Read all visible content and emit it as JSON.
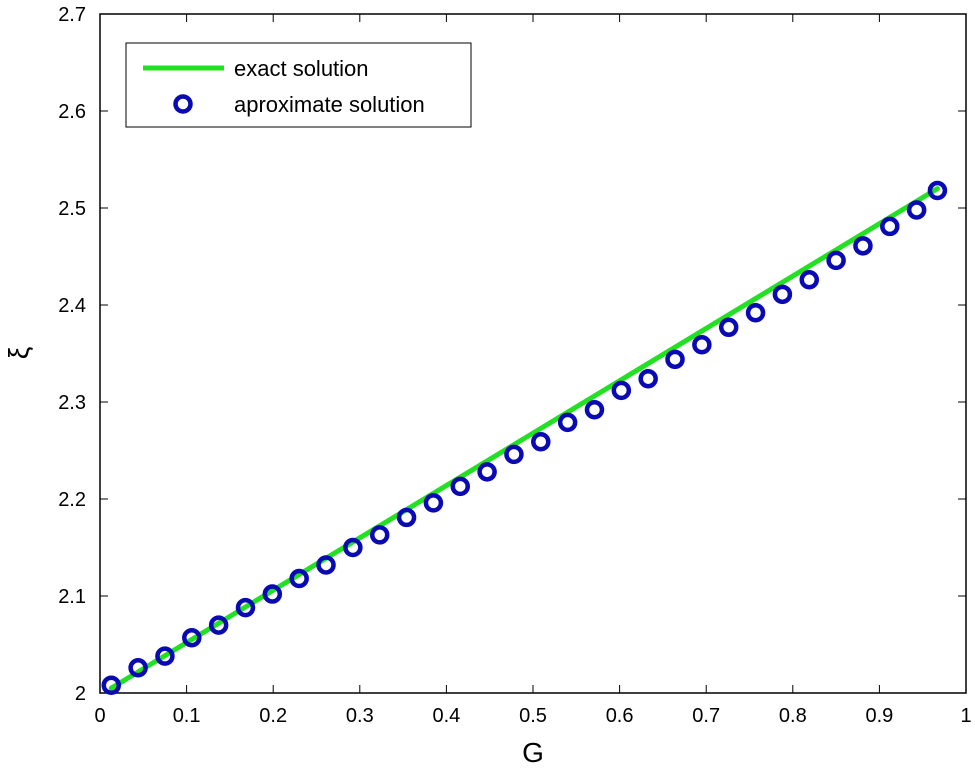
{
  "chart_data": {
    "type": "line",
    "xlabel": "G",
    "ylabel": "ξ",
    "xlim": [
      0,
      1
    ],
    "ylim": [
      2,
      2.7
    ],
    "x_ticks": [
      "0",
      "0.1",
      "0.2",
      "0.3",
      "0.4",
      "0.5",
      "0.6",
      "0.7",
      "0.8",
      "0.9",
      "1"
    ],
    "y_ticks": [
      "2",
      "2.1",
      "2.2",
      "2.3",
      "2.4",
      "2.5",
      "2.6",
      "2.7"
    ],
    "legend_position": "top-left",
    "series": [
      {
        "name": "exact solution",
        "style": "line",
        "color": "#22e022",
        "x": [
          0.013,
          0.967
        ],
        "y": [
          2.005,
          2.52
        ]
      },
      {
        "name": "aproximate solution",
        "style": "circle-markers",
        "color": "#0a0ab4",
        "x": [
          0.013,
          0.044,
          0.075,
          0.106,
          0.137,
          0.168,
          0.199,
          0.23,
          0.261,
          0.292,
          0.323,
          0.354,
          0.385,
          0.416,
          0.447,
          0.478,
          0.509,
          0.54,
          0.571,
          0.602,
          0.633,
          0.664,
          0.695,
          0.726,
          0.757,
          0.788,
          0.819,
          0.85,
          0.881,
          0.912,
          0.943,
          0.967
        ],
        "y": [
          2.008,
          2.026,
          2.038,
          2.057,
          2.07,
          2.088,
          2.102,
          2.118,
          2.132,
          2.15,
          2.163,
          2.181,
          2.196,
          2.213,
          2.228,
          2.246,
          2.259,
          2.279,
          2.292,
          2.312,
          2.324,
          2.344,
          2.359,
          2.377,
          2.392,
          2.411,
          2.426,
          2.446,
          2.461,
          2.481,
          2.498,
          2.518
        ]
      }
    ]
  }
}
